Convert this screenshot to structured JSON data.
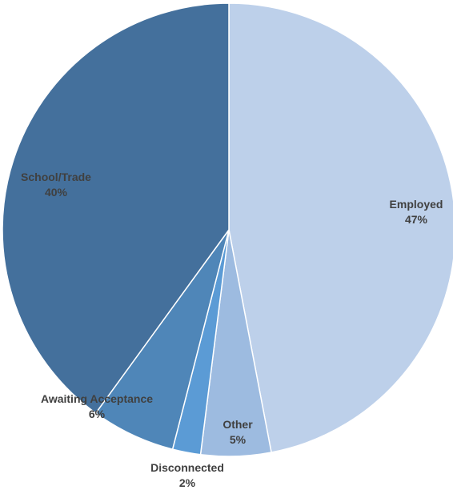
{
  "chart_data": {
    "type": "pie",
    "start_angle_deg": 0,
    "direction": "clockwise",
    "slices": [
      {
        "name": "Employed",
        "value": 47,
        "label_pct": "47%",
        "color": "#BDD0EA"
      },
      {
        "name": "Other",
        "value": 5,
        "label_pct": "5%",
        "color": "#9DBBE0"
      },
      {
        "name": "Disconnected",
        "value": 2,
        "label_pct": "2%",
        "color": "#5B9BD5"
      },
      {
        "name": "Awaiting Acceptance",
        "value": 6,
        "label_pct": "6%",
        "color": "#4F86B8"
      },
      {
        "name": "School/Trade",
        "value": 40,
        "label_pct": "40%",
        "color": "#44709C"
      }
    ],
    "legend": "none",
    "data_labels": "category and percentage"
  }
}
